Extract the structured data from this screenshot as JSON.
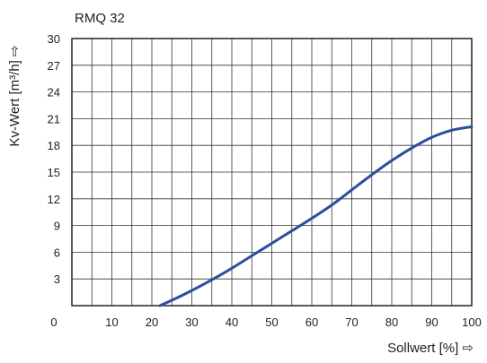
{
  "chart_data": {
    "type": "line",
    "title": "RMQ 32",
    "xlabel": "Sollwert [%] ⇨",
    "ylabel": "Kv-Wert [m³/h] ⇨",
    "xlim": [
      0,
      100
    ],
    "ylim": [
      0,
      30
    ],
    "x_ticks": [
      0,
      10,
      20,
      30,
      40,
      50,
      60,
      70,
      80,
      90,
      100
    ],
    "y_ticks": [
      3,
      6,
      9,
      12,
      15,
      18,
      21,
      24,
      27,
      30
    ],
    "x_tick_labels": [
      "0",
      "10",
      "20",
      "30",
      "40",
      "50",
      "60",
      "70",
      "80",
      "90",
      "100"
    ],
    "y_tick_labels": [
      "3",
      "6",
      "9",
      "12",
      "15",
      "18",
      "21",
      "24",
      "27",
      "30"
    ],
    "origin_label": "0",
    "grid": true,
    "grid_x_step": 5,
    "grid_y_step": 3,
    "line_color": "#2b4f9e",
    "series": [
      {
        "x": [
          22,
          25,
          30,
          35,
          40,
          45,
          50,
          55,
          60,
          65,
          70,
          75,
          80,
          85,
          90,
          95,
          100
        ],
        "y": [
          0,
          0.6,
          1.7,
          2.9,
          4.2,
          5.6,
          7.0,
          8.4,
          9.8,
          11.3,
          13.0,
          14.7,
          16.3,
          17.7,
          18.9,
          19.7,
          20.1
        ]
      }
    ]
  }
}
